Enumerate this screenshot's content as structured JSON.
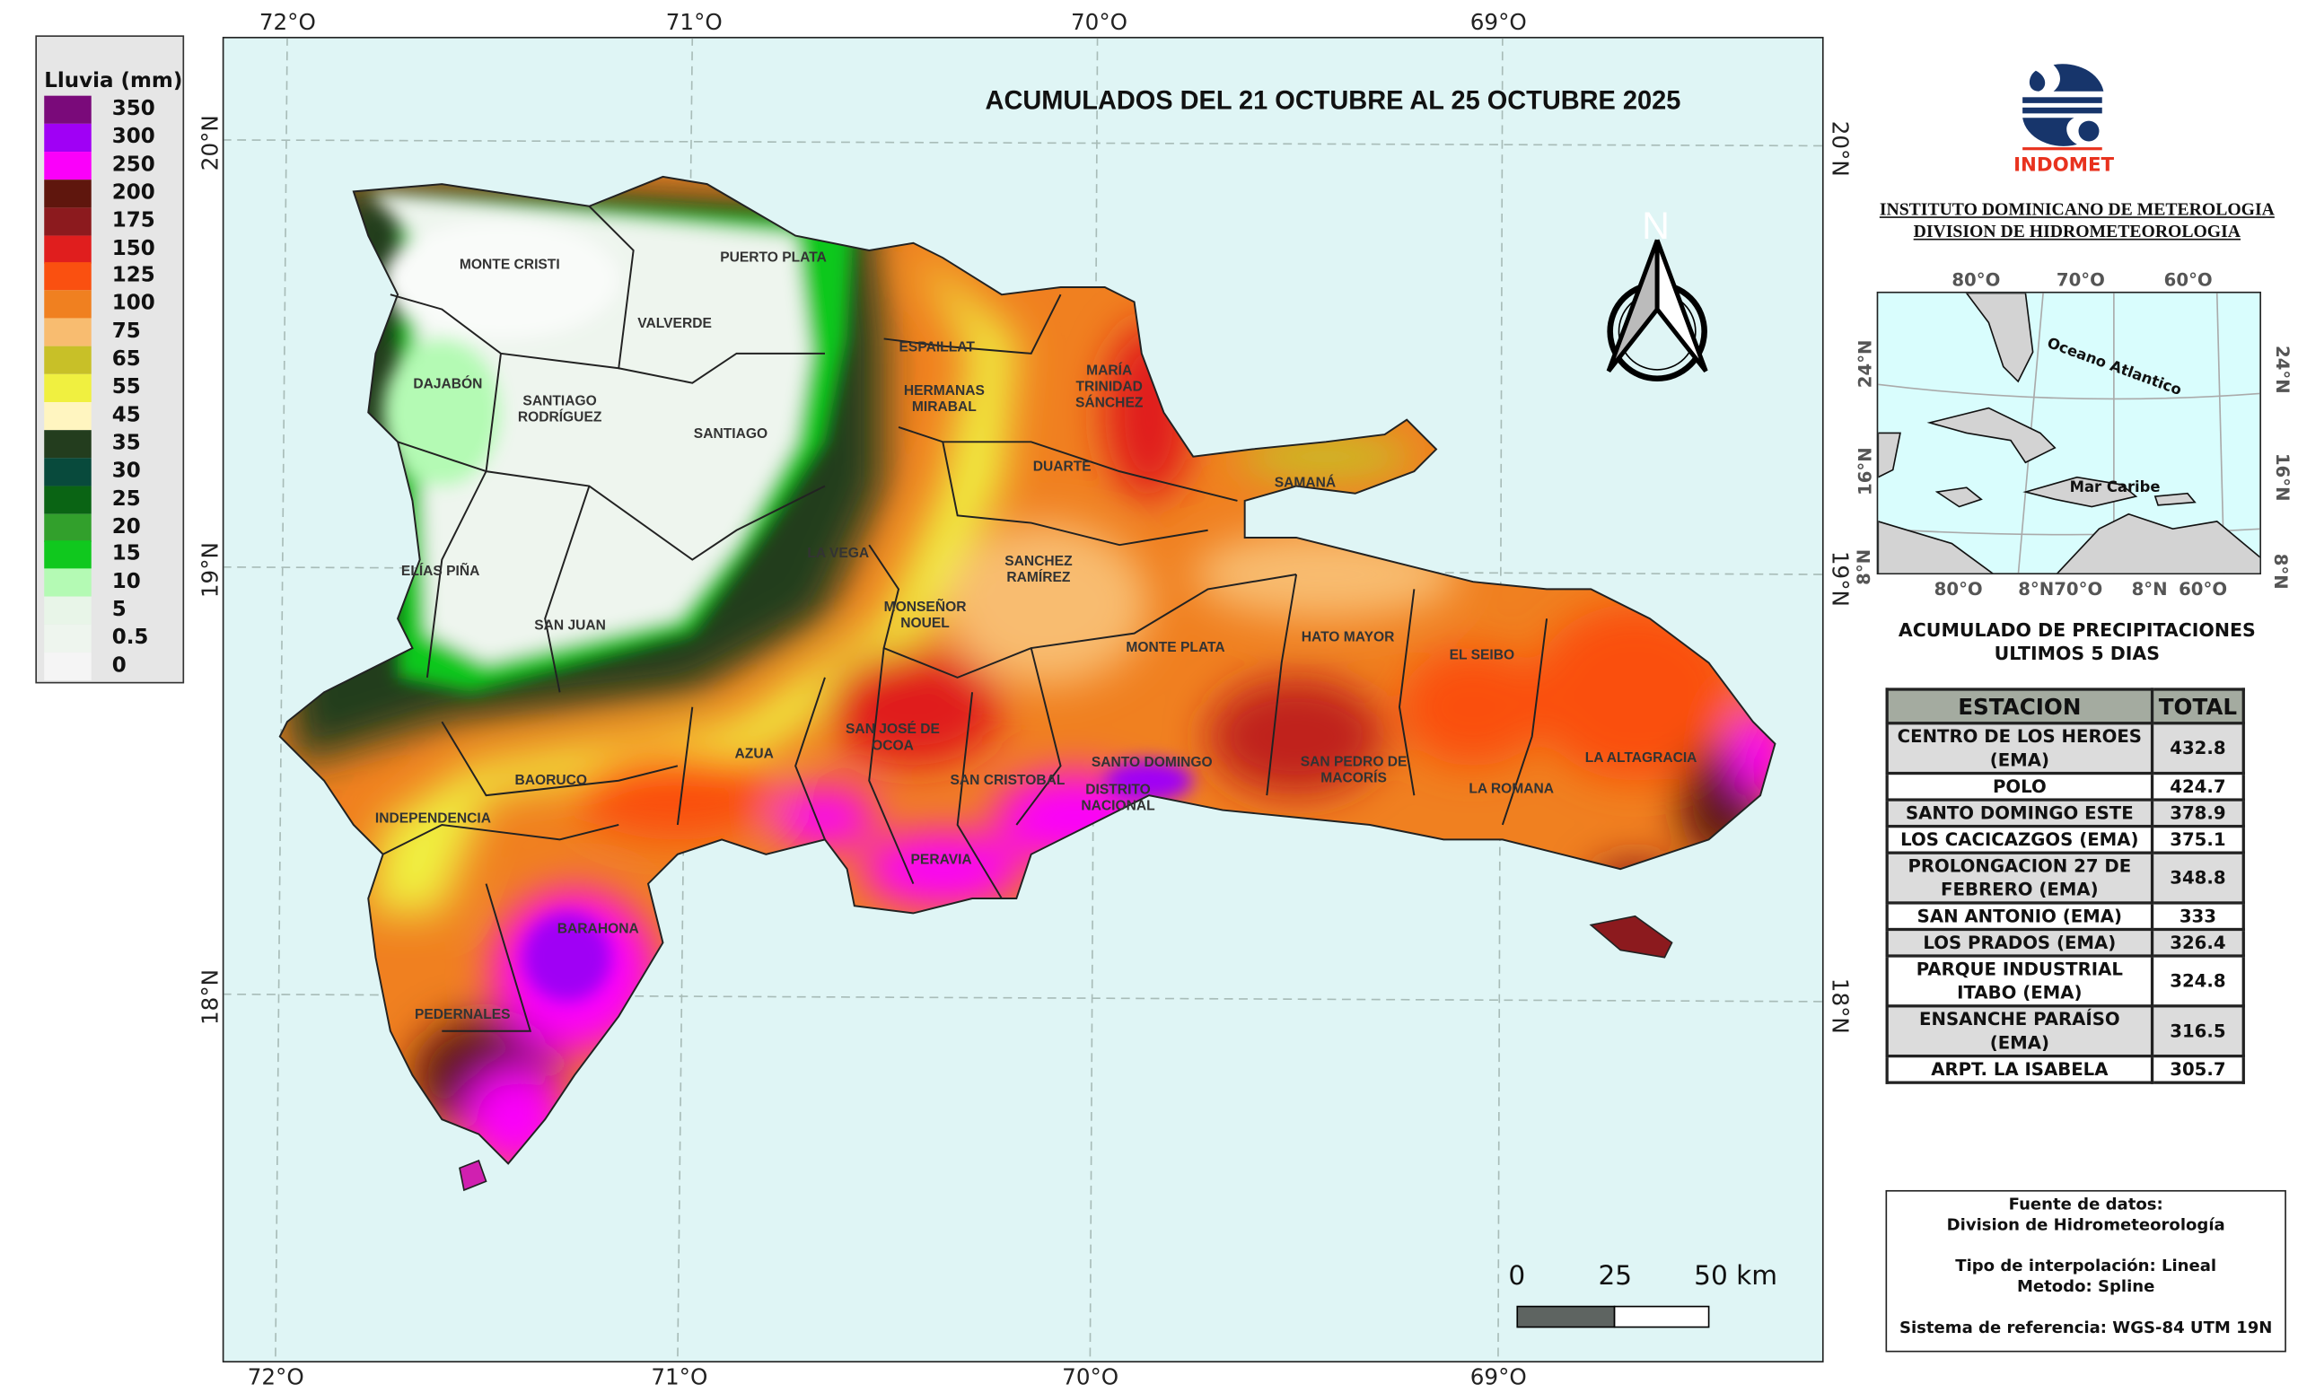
{
  "map_title": "ACUMULADOS DEL  21 OCTUBRE AL 25 OCTUBRE 2025",
  "legend": {
    "title": "Lluvia (mm)",
    "items": [
      {
        "label": "350",
        "color": "#7a0a7a"
      },
      {
        "label": "300",
        "color": "#a000f5"
      },
      {
        "label": "250",
        "color": "#fa00fa"
      },
      {
        "label": "200",
        "color": "#5f160d"
      },
      {
        "label": "175",
        "color": "#8c1a1e"
      },
      {
        "label": "150",
        "color": "#e01e1e"
      },
      {
        "label": "125",
        "color": "#fa5010"
      },
      {
        "label": "100",
        "color": "#f08020"
      },
      {
        "label": "75",
        "color": "#f8bc70"
      },
      {
        "label": "65",
        "color": "#c8c028"
      },
      {
        "label": "55",
        "color": "#f0f040"
      },
      {
        "label": "45",
        "color": "#fff5c0"
      },
      {
        "label": "35",
        "color": "#233d1e"
      },
      {
        "label": "30",
        "color": "#084a3c"
      },
      {
        "label": "25",
        "color": "#0a6414"
      },
      {
        "label": "20",
        "color": "#32a02c"
      },
      {
        "label": "15",
        "color": "#10c81e"
      },
      {
        "label": "10",
        "color": "#b4fab4"
      },
      {
        "label": "5",
        "color": "#e8f5e8"
      },
      {
        "label": "0.5",
        "color": "#eef5ee"
      },
      {
        "label": "0",
        "color": "#f5f5f5"
      }
    ]
  },
  "grid": {
    "lon": [
      "72°O",
      "71°O",
      "70°O",
      "69°O"
    ],
    "lat": [
      "20°N",
      "19°N",
      "18°N"
    ]
  },
  "north_label": "N",
  "provinces": [
    "MONTE CRISTI",
    "PUERTO PLATA",
    "VALVERDE",
    "ESPAILLAT",
    "HERMANAS\nMIRABAL",
    "MARÍA\nTRINIDAD\nSÁNCHEZ",
    "DAJABÓN",
    "SANTIAGO\nRODRÍGUEZ",
    "SANTIAGO",
    "DUARTE",
    "SAMANÁ",
    "ELÍAS PIÑA",
    "LA VEGA",
    "SANCHEZ\nRAMÍREZ",
    "MONSEÑOR\nNOUEL",
    "SAN JUAN",
    "MONTE PLATA",
    "HATO MAYOR",
    "EL SEIBO",
    "LA ALTAGRACIA",
    "SAN JOSÉ DE\nOCOA",
    "AZUA",
    "SANTO DOMINGO",
    "SAN PEDRO DE\nMACORÍS",
    "BAORUCO",
    "SAN CRISTOBAL",
    "DISTRITO\nNACIONAL",
    "LA ROMANA",
    "INDEPENDENCIA",
    "PERAVIA",
    "BARAHONA",
    "PEDERNALES"
  ],
  "scale_bar": {
    "labels": [
      "0",
      "25",
      "50 km"
    ]
  },
  "logo": {
    "text": "INDOMET",
    "color_blue": "#17356b",
    "color_red": "#e8321e"
  },
  "institution": {
    "line1": "INSTITUTO DOMINICANO DE METEROLOGIA",
    "line2": "DIVISION DE HIDROMETEOROLOGIA"
  },
  "inset": {
    "top_lon": [
      "80°O",
      "70°O",
      "60°O"
    ],
    "bottom_lon": [
      "80°O",
      "8°N70°O",
      "8°N",
      "60°O"
    ],
    "left_lat": [
      "24°N",
      "16°N",
      "8°N"
    ],
    "right_lat": [
      "24°N",
      "16°N",
      "8°N"
    ],
    "ocean_label": "Oceano Atlantico",
    "sea_label": "Mar Caribe"
  },
  "table": {
    "title_line1": "ACUMULADO DE PRECIPITACIONES",
    "title_line2": "ULTIMOS 5 DIAS",
    "headers": [
      "ESTACION",
      "TOTAL"
    ],
    "rows": [
      {
        "station": "CENTRO DE LOS HEROES (EMA)",
        "total": "432.8"
      },
      {
        "station": "POLO",
        "total": "424.7"
      },
      {
        "station": "SANTO DOMINGO ESTE",
        "total": "378.9"
      },
      {
        "station": "LOS CACICAZGOS (EMA)",
        "total": "375.1"
      },
      {
        "station": "PROLONGACION 27 DE FEBRERO (EMA)",
        "total": "348.8"
      },
      {
        "station": "SAN ANTONIO (EMA)",
        "total": "333"
      },
      {
        "station": "LOS PRADOS (EMA)",
        "total": "326.4"
      },
      {
        "station": "PARQUE INDUSTRIAL ITABO (EMA)",
        "total": "324.8"
      },
      {
        "station": "ENSANCHE PARAÍSO (EMA)",
        "total": "316.5"
      },
      {
        "station": "ARPT. LA ISABELA",
        "total": "305.7"
      }
    ]
  },
  "footer": {
    "source_label": "Fuente de datos:",
    "source": "Division de Hidrometeorología",
    "interp": "Tipo de interpolación: Lineal",
    "method": "Metodo: Spline",
    "crs": "Sistema de referencia: WGS-84 UTM 19N"
  }
}
